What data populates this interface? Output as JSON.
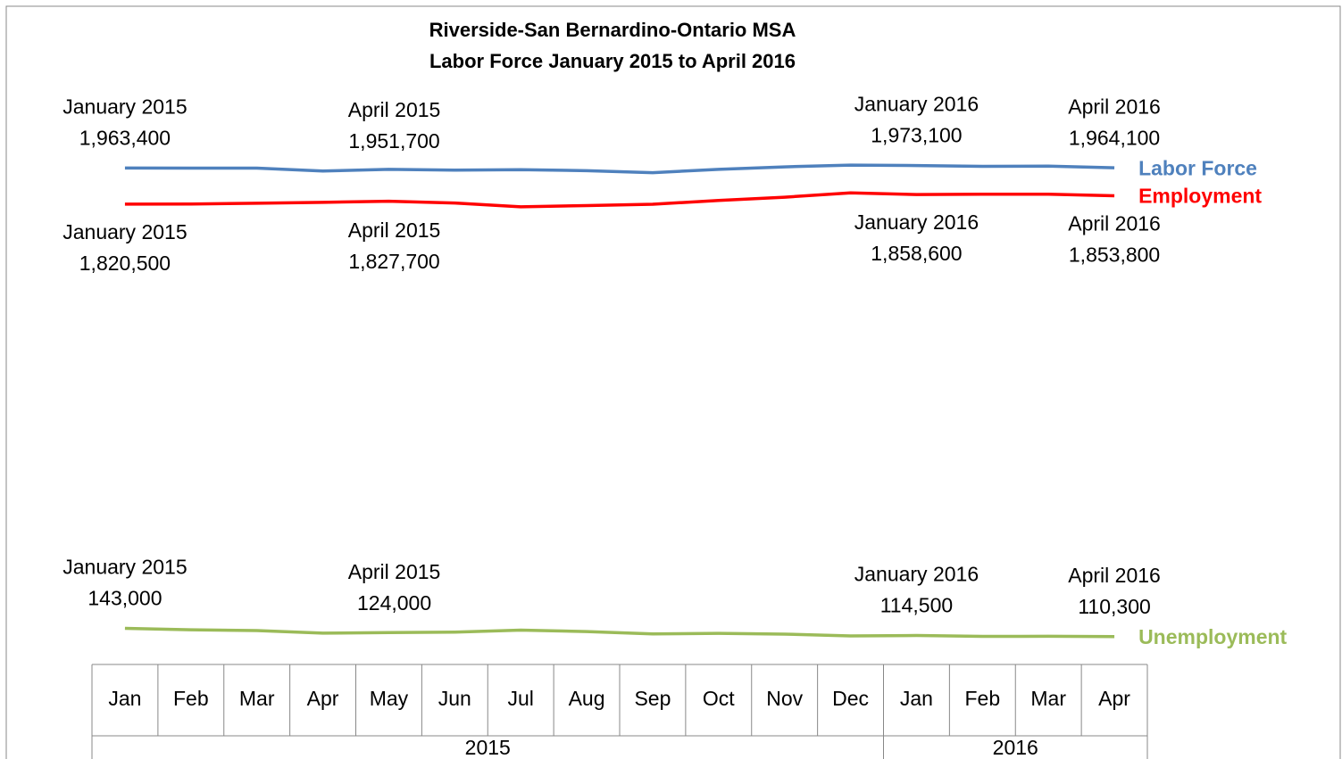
{
  "chart_data": {
    "type": "line",
    "title": "Riverside-San Bernardino-Ontario MSA",
    "subtitle": "Labor Force January 2015 to April 2016",
    "categories": [
      "Jan",
      "Feb",
      "Mar",
      "Apr",
      "May",
      "Jun",
      "Jul",
      "Aug",
      "Sep",
      "Oct",
      "Nov",
      "Dec",
      "Jan",
      "Feb",
      "Mar",
      "Apr"
    ],
    "groups": [
      {
        "name": "2015",
        "count": 12
      },
      {
        "name": "2016",
        "count": 4
      }
    ],
    "ylim": [
      0,
      2000000
    ],
    "series": [
      {
        "name": "Labor Force",
        "color": "#4f81bd",
        "values": [
          1963400,
          1963000,
          1962800,
          1951700,
          1958000,
          1955000,
          1957000,
          1953000,
          1945000,
          1958000,
          1968000,
          1975000,
          1973100,
          1970000,
          1971000,
          1964100
        ],
        "value_labels": [
          "1,963,400",
          null,
          null,
          "1,951,700",
          null,
          null,
          null,
          null,
          null,
          null,
          null,
          null,
          "1,973,100",
          null,
          null,
          "1,964,100"
        ],
        "date_labels": [
          "January  2015",
          null,
          null,
          "April 2015",
          null,
          null,
          null,
          null,
          null,
          null,
          null,
          null,
          "January 2016",
          null,
          null,
          "April 2016"
        ]
      },
      {
        "name": "Employment",
        "color": "#ff0000",
        "values": [
          1820500,
          1821000,
          1824000,
          1827700,
          1832000,
          1825000,
          1810000,
          1815000,
          1820000,
          1835000,
          1848000,
          1865000,
          1858600,
          1860000,
          1860000,
          1853800
        ],
        "value_labels": [
          "1,820,500",
          null,
          null,
          "1,827,700",
          null,
          null,
          null,
          null,
          null,
          null,
          null,
          null,
          "1,858,600",
          null,
          null,
          "1,853,800"
        ],
        "date_labels": [
          "January  2015",
          null,
          null,
          "April 2015",
          null,
          null,
          null,
          null,
          null,
          null,
          null,
          null,
          "January 2016",
          null,
          null,
          "April 2016"
        ]
      },
      {
        "name": "Unemployment",
        "color": "#9bbb59",
        "values": [
          143000,
          137000,
          134000,
          124000,
          126000,
          128000,
          136000,
          130000,
          121000,
          123000,
          120000,
          113000,
          114500,
          111000,
          111500,
          110300
        ],
        "value_labels": [
          "143,000",
          null,
          null,
          "124,000",
          null,
          null,
          null,
          null,
          null,
          null,
          null,
          null,
          "114,500",
          null,
          null,
          "110,300"
        ],
        "date_labels": [
          "January  2015",
          null,
          null,
          "April 2015",
          null,
          null,
          null,
          null,
          null,
          null,
          null,
          null,
          "January 2016",
          null,
          null,
          "April 2016"
        ]
      }
    ]
  }
}
